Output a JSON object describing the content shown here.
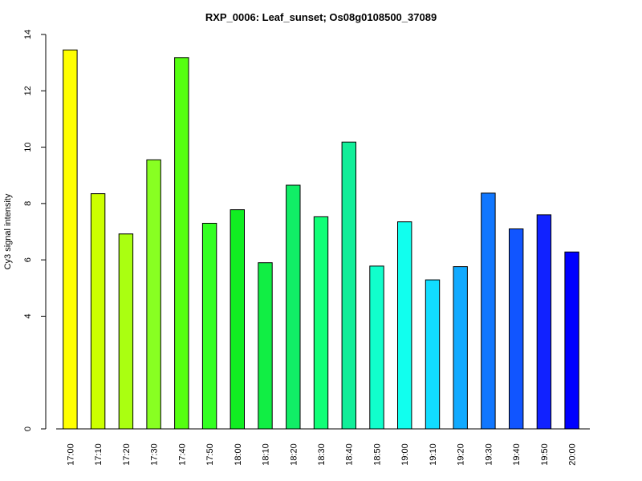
{
  "chart_data": {
    "type": "bar",
    "title": "RXP_0006: Leaf_sunset; Os08g0108500_37089",
    "xlabel": "",
    "ylabel": "Cy3 signal intensity",
    "ylim": [
      0,
      14
    ],
    "yticks": [
      0,
      4,
      6,
      8,
      10,
      12,
      14
    ],
    "grid": false,
    "categories": [
      "17:00",
      "17:10",
      "17:20",
      "17:30",
      "17:40",
      "17:50",
      "18:00",
      "18:10",
      "18:20",
      "18:30",
      "18:40",
      "18:50",
      "19:00",
      "19:10",
      "19:20",
      "19:30",
      "19:40",
      "19:50",
      "20:00"
    ],
    "values": [
      13.45,
      8.35,
      6.92,
      9.55,
      13.18,
      7.3,
      7.78,
      5.9,
      8.65,
      7.53,
      10.18,
      5.78,
      7.35,
      5.29,
      5.76,
      8.37,
      7.1,
      7.6,
      6.28
    ],
    "colors": [
      "#FFFF00",
      "#CCFF00",
      "#AAFF11",
      "#88FF22",
      "#55FF11",
      "#33FF22",
      "#11EE22",
      "#11EE44",
      "#11EE66",
      "#11FF77",
      "#11EE99",
      "#11FFCC",
      "#11FFEE",
      "#11DDFF",
      "#11AAFF",
      "#1177FF",
      "#1155FF",
      "#1122FF",
      "#0000FF"
    ]
  }
}
